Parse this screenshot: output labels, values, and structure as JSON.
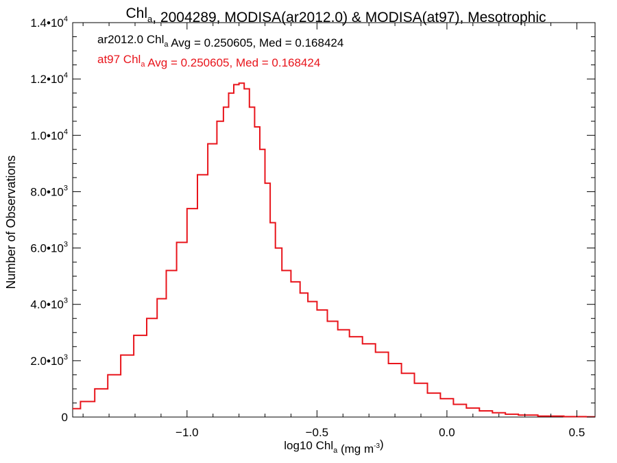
{
  "chart_data": {
    "type": "histogram",
    "title": {
      "parts": [
        {
          "text": "Chl",
          "sub": "a"
        },
        {
          "text": ", 2004289, MODISA(ar2012.0) & MODISA(at97), Mesotrophic"
        }
      ]
    },
    "xlabel": {
      "parts": [
        {
          "text": "log10 Chl",
          "sub": "a"
        },
        {
          "text": " (mg m",
          "sup": "-3"
        },
        {
          "text": ")"
        }
      ]
    },
    "ylabel": "Number of Observations",
    "xlim": [
      -1.44,
      0.57
    ],
    "ylim": [
      0,
      14000
    ],
    "xticks": [
      {
        "value": -1.0,
        "label": "−1.0"
      },
      {
        "value": -0.5,
        "label": "−0.5"
      },
      {
        "value": 0.0,
        "label": "0.0"
      },
      {
        "value": 0.5,
        "label": "0.5"
      }
    ],
    "yticks": [
      {
        "value": 0,
        "base": "0",
        "exp": ""
      },
      {
        "value": 2000,
        "base": "2.0•10",
        "exp": "3"
      },
      {
        "value": 4000,
        "base": "4.0•10",
        "exp": "3"
      },
      {
        "value": 6000,
        "base": "6.0•10",
        "exp": "3"
      },
      {
        "value": 8000,
        "base": "8.0•10",
        "exp": "3"
      },
      {
        "value": 10000,
        "base": "1.0•10",
        "exp": "4"
      },
      {
        "value": 12000,
        "base": "1.2•10",
        "exp": "4"
      },
      {
        "value": 14000,
        "base": "1.4•10",
        "exp": "4"
      }
    ],
    "annotations": [
      {
        "color": "#000000",
        "parts": [
          {
            "text": "ar2012.0 Chl",
            "sub": "a"
          },
          {
            "text": " Avg = 0.250605, Med = 0.168424"
          }
        ]
      },
      {
        "color": "#e8141b",
        "parts": [
          {
            "text": "at97 Chl",
            "sub": "a"
          },
          {
            "text": " Avg = 0.250605, Med = 0.168424"
          }
        ]
      }
    ],
    "series": [
      {
        "color": "#e8141b",
        "x": [
          -1.44,
          -1.38,
          -1.33,
          -1.28,
          -1.23,
          -1.18,
          -1.13,
          -1.1,
          -1.06,
          -1.02,
          -0.98,
          -0.94,
          -0.9,
          -0.87,
          -0.85,
          -0.83,
          -0.81,
          -0.79,
          -0.77,
          -0.75,
          -0.73,
          -0.71,
          -0.69,
          -0.67,
          -0.65,
          -0.62,
          -0.58,
          -0.55,
          -0.52,
          -0.48,
          -0.44,
          -0.4,
          -0.35,
          -0.3,
          -0.25,
          -0.2,
          -0.15,
          -0.1,
          -0.05,
          0.0,
          0.05,
          0.1,
          0.15,
          0.2,
          0.25,
          0.3,
          0.4,
          0.5,
          0.57
        ],
        "values": [
          300,
          550,
          1000,
          1500,
          2200,
          2900,
          3500,
          4200,
          5200,
          6200,
          7400,
          8600,
          9700,
          10500,
          11000,
          11500,
          11800,
          11850,
          11650,
          11000,
          10300,
          9500,
          8300,
          6900,
          6000,
          5200,
          4800,
          4400,
          4100,
          3800,
          3400,
          3100,
          2850,
          2600,
          2300,
          1900,
          1550,
          1200,
          850,
          650,
          450,
          320,
          220,
          150,
          100,
          70,
          35,
          15,
          10
        ]
      }
    ]
  }
}
